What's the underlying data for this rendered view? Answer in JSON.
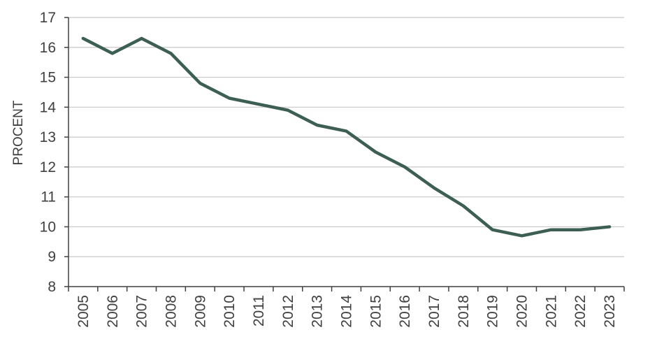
{
  "chart_data": {
    "type": "line",
    "y_label": "PROCENT",
    "categories": [
      "2005",
      "2006",
      "2007",
      "2008",
      "2009",
      "2010",
      "2011",
      "2012",
      "2013",
      "2014",
      "2015",
      "2016",
      "2017",
      "2018",
      "2019",
      "2020",
      "2021",
      "2022",
      "2023"
    ],
    "values": [
      16.3,
      15.8,
      16.3,
      15.8,
      14.8,
      14.3,
      14.1,
      13.9,
      13.4,
      13.2,
      12.5,
      12.0,
      11.3,
      10.7,
      9.9,
      9.7,
      9.9,
      9.9,
      10.0
    ],
    "color": "#3d5e52",
    "ylim": [
      8,
      17
    ],
    "yticks": [
      8,
      9,
      10,
      11,
      12,
      13,
      14,
      15,
      16,
      17
    ],
    "grid": true
  }
}
